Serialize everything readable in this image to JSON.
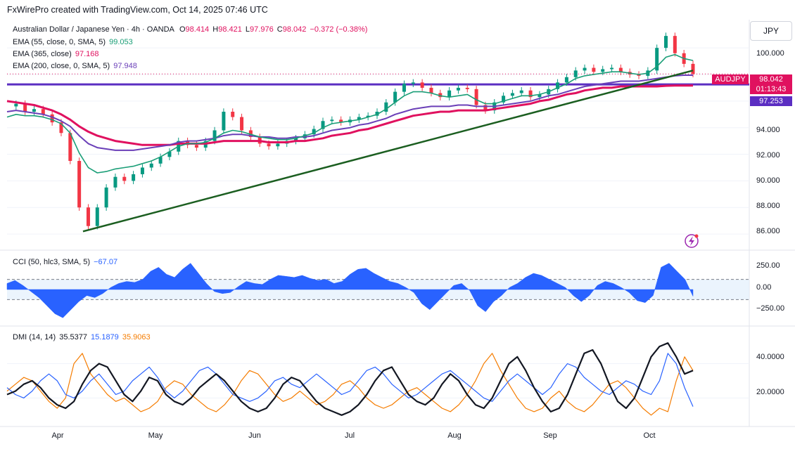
{
  "header": {
    "title": "FxWirePro created with TradingView.com, Oct 14, 2025 07:46 UTC"
  },
  "legend": {
    "symbol": "Australian Dollar / Japanese Yen · 4h · OANDA",
    "ohlc": {
      "o_label": "O",
      "o": "98.414",
      "h_label": "H",
      "h": "98.421",
      "l_label": "L",
      "l": "97.976",
      "c_label": "C",
      "c": "98.042",
      "chg": "−0.372 (−0.38%)"
    },
    "ema55": {
      "label": "EMA (55, close, 0, SMA, 5)",
      "value": "99.053",
      "color": "#1a9e77"
    },
    "ema365": {
      "label": "EMA (365, close)",
      "value": "97.168",
      "color": "#e0115f"
    },
    "ema200": {
      "label": "EMA (200, close, 0, SMA, 5)",
      "value": "97.948",
      "color": "#6a3fb8"
    }
  },
  "currency_button": "JPY",
  "price_tags": {
    "symbol": "AUDJPY",
    "last": "98.042",
    "countdown": "01:13:43",
    "level": "97.253"
  },
  "chart_data": {
    "type": "candlestick",
    "price_axis": {
      "ticks": [
        "100.000",
        "98.000",
        "96.000",
        "94.000",
        "92.000",
        "90.000",
        "88.000",
        "86.000"
      ],
      "ylim": [
        85,
        101.7
      ]
    },
    "x_ticks": [
      "Apr",
      "May",
      "Jun",
      "Jul",
      "Aug",
      "Sep",
      "Oct"
    ],
    "price_close": [
      95.6,
      95.8,
      95.2,
      95.4,
      95.0,
      94.4,
      93.6,
      91.5,
      88.0,
      86.6,
      88.0,
      89.5,
      90.3,
      90.0,
      90.5,
      91.0,
      91.3,
      91.8,
      92.2,
      93.0,
      92.7,
      92.5,
      93.0,
      93.8,
      95.2,
      94.8,
      93.8,
      93.3,
      92.8,
      92.6,
      92.8,
      93.0,
      93.2,
      93.5,
      93.9,
      94.5,
      94.6,
      94.4,
      94.6,
      94.8,
      94.9,
      95.2,
      95.9,
      96.7,
      97.3,
      97.4,
      97.0,
      96.6,
      96.3,
      96.8,
      97.0,
      96.9,
      95.7,
      95.3,
      95.9,
      96.4,
      96.6,
      96.8,
      96.3,
      96.5,
      96.9,
      97.4,
      97.8,
      98.3,
      98.5,
      98.2,
      98.4,
      98.5,
      98.2,
      98.0,
      97.9,
      98.3,
      100.0,
      100.9,
      99.6,
      98.8,
      98.04
    ],
    "ema55": [
      94.8,
      95.0,
      94.9,
      94.9,
      94.8,
      94.6,
      94.3,
      93.6,
      92.1,
      91.0,
      90.6,
      90.7,
      90.9,
      91.0,
      91.1,
      91.3,
      91.5,
      91.8,
      92.2,
      92.6,
      92.8,
      92.8,
      92.9,
      93.2,
      93.6,
      93.8,
      93.7,
      93.5,
      93.3,
      93.2,
      93.1,
      93.1,
      93.2,
      93.4,
      93.6,
      94.0,
      94.3,
      94.4,
      94.5,
      94.6,
      94.8,
      95.0,
      95.4,
      95.9,
      96.4,
      96.7,
      96.7,
      96.6,
      96.4,
      96.3,
      96.4,
      96.5,
      96.1,
      95.8,
      95.8,
      96.0,
      96.2,
      96.4,
      96.4,
      96.5,
      96.7,
      97.0,
      97.3,
      97.7,
      97.9,
      98.0,
      98.1,
      98.2,
      98.2,
      98.1,
      98.0,
      98.1,
      98.6,
      99.3,
      99.5,
      99.2,
      99.05
    ],
    "ema200": [
      95.2,
      95.3,
      95.2,
      95.1,
      95.0,
      94.8,
      94.5,
      94.1,
      93.4,
      92.8,
      92.5,
      92.4,
      92.3,
      92.3,
      92.3,
      92.4,
      92.5,
      92.6,
      92.7,
      92.9,
      93.0,
      93.0,
      93.1,
      93.2,
      93.4,
      93.5,
      93.5,
      93.4,
      93.3,
      93.3,
      93.2,
      93.2,
      93.3,
      93.3,
      93.4,
      93.6,
      93.8,
      93.9,
      94.0,
      94.2,
      94.3,
      94.5,
      94.7,
      95.0,
      95.2,
      95.4,
      95.5,
      95.6,
      95.6,
      95.6,
      95.7,
      95.7,
      95.6,
      95.6,
      95.6,
      95.7,
      95.8,
      95.9,
      96.0,
      96.2,
      96.4,
      96.5,
      96.7,
      96.9,
      97.1,
      97.2,
      97.3,
      97.4,
      97.5,
      97.5,
      97.5,
      97.6,
      97.7,
      97.8,
      97.9,
      97.95,
      97.95
    ],
    "ema365": [
      96.0,
      95.9,
      95.8,
      95.7,
      95.5,
      95.3,
      95.0,
      94.6,
      94.1,
      93.7,
      93.4,
      93.2,
      93.0,
      92.9,
      92.8,
      92.7,
      92.7,
      92.7,
      92.7,
      92.8,
      92.8,
      92.8,
      92.8,
      92.9,
      93.0,
      93.0,
      93.0,
      93.0,
      93.0,
      92.9,
      92.9,
      92.9,
      93.0,
      93.0,
      93.1,
      93.2,
      93.4,
      93.5,
      93.6,
      93.8,
      93.9,
      94.1,
      94.3,
      94.5,
      94.7,
      94.9,
      95.0,
      95.1,
      95.2,
      95.2,
      95.3,
      95.3,
      95.3,
      95.3,
      95.4,
      95.5,
      95.6,
      95.7,
      95.8,
      96.0,
      96.1,
      96.3,
      96.5,
      96.6,
      96.8,
      96.9,
      97.0,
      97.0,
      97.1,
      97.1,
      97.1,
      97.1,
      97.1,
      97.15,
      97.17,
      97.17,
      97.17
    ],
    "trendline": {
      "from": {
        "x": "Apr 9",
        "y": 86.2
      },
      "to": {
        "x": "Oct 14",
        "y": 98.3
      },
      "color": "#1b5e20"
    },
    "horizontal_level": {
      "value": 97.253,
      "color": "#5b2ec2"
    },
    "cci": {
      "label": "CCI (50, hlc3, SMA, 5)",
      "value": "−67.07",
      "ticks": [
        "250.00",
        "0.00",
        "−250.00"
      ],
      "bands": [
        100,
        -100
      ],
      "ylim": [
        -320,
        320
      ],
      "values": [
        60,
        90,
        40,
        -20,
        -80,
        -160,
        -240,
        -280,
        -200,
        -120,
        -60,
        -80,
        -40,
        20,
        60,
        80,
        70,
        100,
        180,
        220,
        150,
        120,
        200,
        260,
        160,
        60,
        -20,
        -40,
        -30,
        30,
        80,
        60,
        50,
        100,
        140,
        130,
        120,
        140,
        110,
        90,
        100,
        60,
        80,
        150,
        200,
        210,
        160,
        120,
        80,
        60,
        20,
        -30,
        -140,
        -200,
        -120,
        -40,
        40,
        60,
        -10,
        -160,
        -220,
        -120,
        -60,
        20,
        60,
        120,
        160,
        140,
        100,
        60,
        20,
        -60,
        -120,
        -60,
        40,
        80,
        60,
        20,
        -30,
        -110,
        -130,
        -60,
        220,
        260,
        180,
        100,
        -67
      ]
    },
    "dmi": {
      "label": "DMI (14, 14)",
      "adx": "35.5377",
      "plus_di": "15.1879",
      "minus_di": "35.9063",
      "ticks": [
        "40.0000",
        "20.0000"
      ],
      "ylim": [
        5,
        57
      ],
      "adx_values": [
        22,
        24,
        28,
        30,
        26,
        20,
        16,
        14,
        18,
        28,
        36,
        40,
        38,
        30,
        22,
        18,
        24,
        32,
        30,
        22,
        18,
        16,
        20,
        26,
        30,
        34,
        30,
        24,
        18,
        14,
        12,
        14,
        20,
        28,
        32,
        30,
        24,
        18,
        14,
        12,
        10,
        12,
        16,
        22,
        30,
        36,
        38,
        30,
        22,
        18,
        16,
        20,
        28,
        34,
        30,
        22,
        16,
        14,
        20,
        30,
        40,
        44,
        36,
        26,
        18,
        12,
        14,
        22,
        34,
        46,
        48,
        40,
        28,
        18,
        14,
        20,
        32,
        44,
        50,
        52,
        44,
        34,
        36
      ],
      "plus_values": [
        26,
        22,
        20,
        24,
        30,
        34,
        30,
        22,
        20,
        24,
        30,
        34,
        28,
        22,
        24,
        30,
        34,
        38,
        32,
        24,
        20,
        24,
        30,
        36,
        38,
        34,
        28,
        22,
        20,
        18,
        20,
        24,
        30,
        32,
        28,
        26,
        30,
        34,
        30,
        26,
        22,
        24,
        30,
        36,
        38,
        34,
        28,
        24,
        20,
        22,
        26,
        30,
        34,
        36,
        32,
        28,
        24,
        20,
        18,
        24,
        30,
        34,
        30,
        26,
        22,
        26,
        34,
        40,
        38,
        32,
        28,
        24,
        22,
        26,
        30,
        28,
        24,
        22,
        30,
        46,
        40,
        26,
        15
      ],
      "minus_values": [
        24,
        28,
        32,
        30,
        24,
        18,
        14,
        20,
        40,
        46,
        34,
        28,
        22,
        18,
        20,
        16,
        12,
        14,
        18,
        26,
        30,
        28,
        22,
        18,
        14,
        12,
        16,
        22,
        30,
        36,
        34,
        28,
        22,
        18,
        20,
        24,
        20,
        16,
        18,
        22,
        28,
        30,
        26,
        20,
        16,
        14,
        16,
        20,
        24,
        26,
        22,
        18,
        14,
        12,
        16,
        22,
        30,
        40,
        46,
        36,
        28,
        20,
        14,
        12,
        14,
        20,
        24,
        18,
        14,
        12,
        16,
        22,
        28,
        30,
        26,
        20,
        14,
        10,
        14,
        12,
        30,
        44,
        36
      ]
    }
  }
}
